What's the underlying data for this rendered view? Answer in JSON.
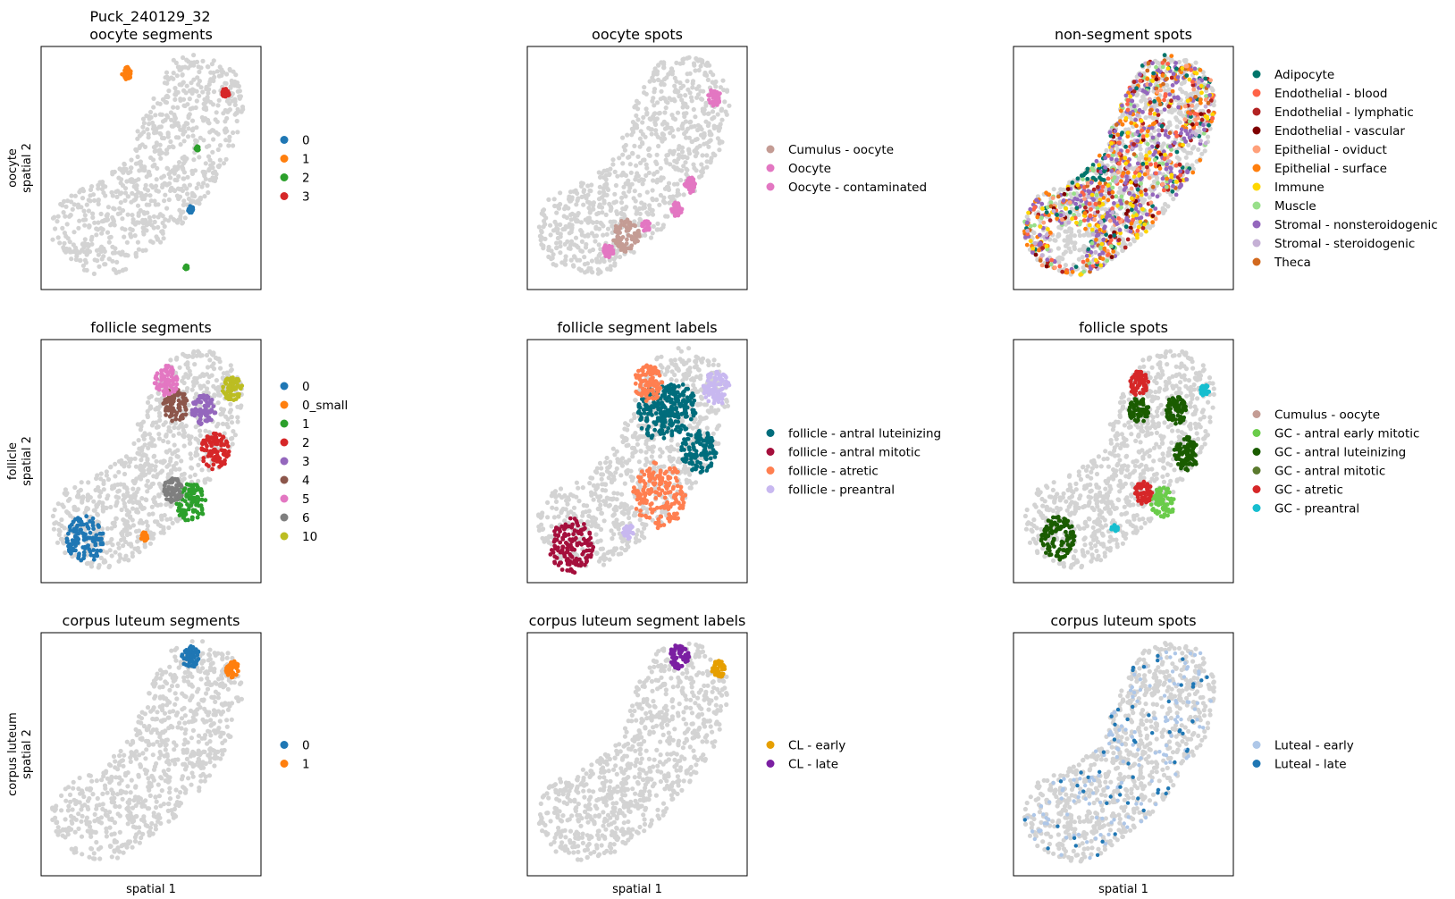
{
  "figure": {
    "suptitle": "Puck_240129_32",
    "xlabel": "spatial 1",
    "row_ylabels": [
      [
        "oocyte",
        "spatial 2"
      ],
      [
        "follicle",
        "spatial 2"
      ],
      [
        "corpus luteum",
        "spatial 2"
      ]
    ]
  },
  "chart_data": [
    {
      "type": "scatter",
      "title": "oocyte segments",
      "legend": [
        {
          "label": "0",
          "color": "#1f77b4"
        },
        {
          "label": "1",
          "color": "#ff7f0e"
        },
        {
          "label": "2",
          "color": "#2ca02c"
        },
        {
          "label": "3",
          "color": "#d62728"
        }
      ],
      "background_color": "#d3d3d3",
      "clusters": [
        {
          "label": "0",
          "x": 0.68,
          "y": 0.33,
          "r": 0.012
        },
        {
          "label": "1",
          "x": 0.39,
          "y": 0.89,
          "r": 0.022
        },
        {
          "label": "2",
          "x": 0.66,
          "y": 0.09,
          "r": 0.008
        },
        {
          "label": "2",
          "x": 0.71,
          "y": 0.58,
          "r": 0.008
        },
        {
          "label": "3",
          "x": 0.84,
          "y": 0.81,
          "r": 0.018
        }
      ]
    },
    {
      "type": "scatter",
      "title": "oocyte spots",
      "legend": [
        {
          "label": "Cumulus - oocyte",
          "color": "#c49c94"
        },
        {
          "label": "Oocyte",
          "color": "#e377c2"
        },
        {
          "label": "Oocyte - contaminated",
          "color": "#e377c2"
        }
      ],
      "background_color": "#d3d3d3",
      "clusters": [
        {
          "label": "Oocyte",
          "x": 0.85,
          "y": 0.79,
          "r": 0.03
        },
        {
          "label": "Oocyte",
          "x": 0.74,
          "y": 0.43,
          "r": 0.028
        },
        {
          "label": "Oocyte",
          "x": 0.68,
          "y": 0.33,
          "r": 0.025
        },
        {
          "label": "Oocyte",
          "x": 0.54,
          "y": 0.26,
          "r": 0.02
        },
        {
          "label": "Oocyte",
          "x": 0.37,
          "y": 0.16,
          "r": 0.025
        },
        {
          "label": "Cumulus - oocyte",
          "x": 0.45,
          "y": 0.22,
          "r": 0.06
        }
      ]
    },
    {
      "type": "scatter",
      "title": "non-segment spots",
      "legend": [
        {
          "label": "Adipocyte",
          "color": "#00756b"
        },
        {
          "label": "Endothelial - blood",
          "color": "#ff6347"
        },
        {
          "label": "Endothelial - lymphatic",
          "color": "#b22222"
        },
        {
          "label": "Endothelial - vascular",
          "color": "#800000"
        },
        {
          "label": "Epithelial - oviduct",
          "color": "#ffa07a"
        },
        {
          "label": "Epithelial - surface",
          "color": "#ff7f0e"
        },
        {
          "label": "Immune",
          "color": "#ffd700"
        },
        {
          "label": "Muscle",
          "color": "#98df8a"
        },
        {
          "label": "Stromal - nonsteroidogenic",
          "color": "#9467bd"
        },
        {
          "label": "Stromal - steroidogenic",
          "color": "#c5b0d5"
        },
        {
          "label": "Theca",
          "color": "#d2691e"
        }
      ],
      "background_color": "#d3d3d3",
      "clusters": []
    },
    {
      "type": "scatter",
      "title": "follicle segments",
      "legend": [
        {
          "label": "0",
          "color": "#1f77b4"
        },
        {
          "label": "0_small",
          "color": "#ff7f0e"
        },
        {
          "label": "1",
          "color": "#2ca02c"
        },
        {
          "label": "2",
          "color": "#d62728"
        },
        {
          "label": "3",
          "color": "#9467bd"
        },
        {
          "label": "4",
          "color": "#8c564b"
        },
        {
          "label": "5",
          "color": "#e377c2"
        },
        {
          "label": "6",
          "color": "#7f7f7f"
        },
        {
          "label": "10",
          "color": "#bcbd22"
        }
      ],
      "background_color": "#d3d3d3",
      "clusters": [
        {
          "label": "0",
          "x": 0.2,
          "y": 0.18,
          "r": 0.085
        },
        {
          "label": "0_small",
          "x": 0.47,
          "y": 0.19,
          "r": 0.016
        },
        {
          "label": "1",
          "x": 0.68,
          "y": 0.33,
          "r": 0.07
        },
        {
          "label": "2",
          "x": 0.79,
          "y": 0.54,
          "r": 0.065
        },
        {
          "label": "3",
          "x": 0.74,
          "y": 0.71,
          "r": 0.055
        },
        {
          "label": "4",
          "x": 0.61,
          "y": 0.73,
          "r": 0.06
        },
        {
          "label": "5",
          "x": 0.57,
          "y": 0.83,
          "r": 0.055
        },
        {
          "label": "6",
          "x": 0.6,
          "y": 0.38,
          "r": 0.045
        },
        {
          "label": "10",
          "x": 0.87,
          "y": 0.8,
          "r": 0.045
        }
      ]
    },
    {
      "type": "scatter",
      "title": "follicle segment labels",
      "legend": [
        {
          "label": "follicle - antral luteinizing",
          "color": "#006d7c"
        },
        {
          "label": "follicle - antral mitotic",
          "color": "#a50f3c"
        },
        {
          "label": "follicle - atretic",
          "color": "#ff7f50"
        },
        {
          "label": "follicle - preantral",
          "color": "#c8b8f0"
        }
      ],
      "background_color": "#d3d3d3",
      "clusters": [
        {
          "label": "follicle - antral mitotic",
          "x": 0.2,
          "y": 0.15,
          "r": 0.1
        },
        {
          "label": "follicle - preantral",
          "x": 0.46,
          "y": 0.21,
          "r": 0.025
        },
        {
          "label": "follicle - atretic",
          "x": 0.6,
          "y": 0.36,
          "r": 0.12
        },
        {
          "label": "follicle - antral luteinizing",
          "x": 0.78,
          "y": 0.54,
          "r": 0.08
        },
        {
          "label": "follicle - antral luteinizing",
          "x": 0.6,
          "y": 0.7,
          "r": 0.1
        },
        {
          "label": "follicle - antral luteinizing",
          "x": 0.68,
          "y": 0.72,
          "r": 0.09
        },
        {
          "label": "follicle - atretic",
          "x": 0.55,
          "y": 0.82,
          "r": 0.065
        },
        {
          "label": "follicle - preantral",
          "x": 0.86,
          "y": 0.8,
          "r": 0.06
        }
      ]
    },
    {
      "type": "scatter",
      "title": "follicle spots",
      "legend": [
        {
          "label": "Cumulus - oocyte",
          "color": "#c49c94"
        },
        {
          "label": "GC - antral early mitotic",
          "color": "#6acc4a"
        },
        {
          "label": "GC - antral luteinizing",
          "color": "#1a5c00"
        },
        {
          "label": "GC - antral mitotic",
          "color": "#5b7a2e"
        },
        {
          "label": "GC - atretic",
          "color": "#d62728"
        },
        {
          "label": "GC - preantral",
          "color": "#17becf"
        }
      ],
      "background_color": "#d3d3d3",
      "clusters": [
        {
          "label": "GC - antral luteinizing",
          "x": 0.2,
          "y": 0.18,
          "r": 0.08
        },
        {
          "label": "GC - antral luteinizing",
          "x": 0.79,
          "y": 0.53,
          "r": 0.06
        },
        {
          "label": "GC - antral luteinizing",
          "x": 0.74,
          "y": 0.71,
          "r": 0.05
        },
        {
          "label": "GC - antral luteinizing",
          "x": 0.57,
          "y": 0.71,
          "r": 0.045
        },
        {
          "label": "GC - antral early mitotic",
          "x": 0.68,
          "y": 0.33,
          "r": 0.055
        },
        {
          "label": "GC - atretic",
          "x": 0.57,
          "y": 0.82,
          "r": 0.045
        },
        {
          "label": "GC - atretic",
          "x": 0.59,
          "y": 0.37,
          "r": 0.04
        },
        {
          "label": "GC - preantral",
          "x": 0.87,
          "y": 0.79,
          "r": 0.02
        },
        {
          "label": "GC - preantral",
          "x": 0.46,
          "y": 0.22,
          "r": 0.015
        }
      ]
    },
    {
      "type": "scatter",
      "title": "corpus luteum segments",
      "legend": [
        {
          "label": "0",
          "color": "#1f77b4"
        },
        {
          "label": "1",
          "color": "#ff7f0e"
        }
      ],
      "background_color": "#d3d3d3",
      "clusters": [
        {
          "label": "0",
          "x": 0.68,
          "y": 0.9,
          "r": 0.04
        },
        {
          "label": "1",
          "x": 0.87,
          "y": 0.85,
          "r": 0.03
        }
      ]
    },
    {
      "type": "scatter",
      "title": "corpus luteum segment labels",
      "legend": [
        {
          "label": "CL - early",
          "color": "#e69f00"
        },
        {
          "label": "CL - late",
          "color": "#7b1fa2"
        }
      ],
      "background_color": "#d3d3d3",
      "clusters": [
        {
          "label": "CL - late",
          "x": 0.69,
          "y": 0.9,
          "r": 0.045
        },
        {
          "label": "CL - early",
          "x": 0.87,
          "y": 0.85,
          "r": 0.03
        }
      ]
    },
    {
      "type": "scatter",
      "title": "corpus luteum spots",
      "legend": [
        {
          "label": "Luteal - early",
          "color": "#aec7e8"
        },
        {
          "label": "Luteal - late",
          "color": "#1f77b4"
        }
      ],
      "background_color": "#d3d3d3",
      "clusters": []
    }
  ]
}
